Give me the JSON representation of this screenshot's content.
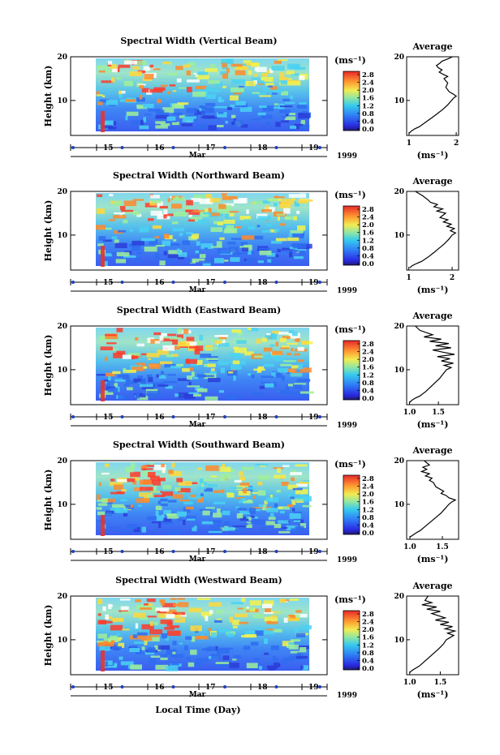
{
  "chart_data": [
    {
      "type": "heatmap",
      "title": "Spectral Width (Vertical Beam)",
      "ylabel": "Height (km)",
      "ylim": [
        2,
        20
      ],
      "yticks": [
        "20",
        "10"
      ],
      "xticks": [
        "15",
        "16",
        "17",
        "18",
        "19"
      ],
      "month_label": "Mar",
      "year_label": "1999",
      "colorbar": {
        "unit": "(ms⁻¹)",
        "ticks": [
          "2.8",
          "2.4",
          "2.0",
          "1.6",
          "1.2",
          "0.8",
          "0.4",
          "0.0"
        ]
      },
      "profile": {
        "title": "Average",
        "xticks": [
          "1",
          "2"
        ],
        "xlim": [
          0.95,
          2.05
        ],
        "xlabel": "(ms⁻¹)",
        "yticks": [
          "20",
          "10"
        ],
        "height_km": [
          2.5,
          3,
          3.5,
          4,
          5,
          6,
          7,
          8,
          9,
          10,
          10.5,
          11,
          11.5,
          12,
          13,
          14,
          15,
          15.5,
          16,
          16.5,
          17,
          17.5,
          18,
          18.5,
          19,
          19.5,
          20
        ],
        "width_ms": [
          1.0,
          1.05,
          1.12,
          1.22,
          1.35,
          1.48,
          1.6,
          1.72,
          1.82,
          1.9,
          1.94,
          2.0,
          1.93,
          1.85,
          1.78,
          1.82,
          1.74,
          1.82,
          1.72,
          1.64,
          1.7,
          1.62,
          1.58,
          1.65,
          1.7,
          1.82,
          1.92
        ]
      }
    },
    {
      "type": "heatmap",
      "title": "Spectral Width (Northward Beam)",
      "ylabel": "Height (km)",
      "ylim": [
        2,
        20
      ],
      "yticks": [
        "20",
        "10"
      ],
      "xticks": [
        "15",
        "16",
        "17",
        "18",
        "19"
      ],
      "month_label": "Mar",
      "year_label": "1999",
      "colorbar": {
        "unit": "(ms⁻¹)",
        "ticks": [
          "2.8",
          "2.4",
          "2.0",
          "1.6",
          "1.2",
          "0.8",
          "0.4",
          "0.0"
        ]
      },
      "profile": {
        "title": "Average",
        "xticks": [
          "1",
          "2"
        ],
        "xlim": [
          0.95,
          2.15
        ],
        "xlabel": "(ms⁻¹)",
        "yticks": [
          "20",
          "10"
        ],
        "height_km": [
          2.5,
          3,
          3.5,
          4,
          5,
          6,
          7,
          8,
          9,
          10,
          10.5,
          11,
          11.5,
          12,
          12.5,
          13,
          13.5,
          14,
          15,
          15.5,
          16,
          16.5,
          17,
          17.5,
          18,
          19,
          20
        ],
        "width_ms": [
          1.02,
          1.08,
          1.18,
          1.3,
          1.45,
          1.58,
          1.7,
          1.82,
          1.92,
          2.0,
          2.08,
          1.96,
          2.05,
          1.88,
          1.98,
          1.8,
          1.9,
          1.72,
          1.85,
          1.65,
          1.78,
          1.58,
          1.66,
          1.5,
          1.45,
          1.32,
          1.15
        ]
      }
    },
    {
      "type": "heatmap",
      "title": "Spectral Width (Eastward Beam)",
      "ylabel": "Height (km)",
      "ylim": [
        2,
        20
      ],
      "yticks": [
        "20",
        "10"
      ],
      "xticks": [
        "15",
        "16",
        "17",
        "18",
        "19"
      ],
      "month_label": "Mar",
      "year_label": "1999",
      "colorbar": {
        "unit": "(ms⁻¹)",
        "ticks": [
          "2.8",
          "2.4",
          "2.0",
          "1.6",
          "1.2",
          "0.8",
          "0.4",
          "0.0"
        ]
      },
      "profile": {
        "title": "Average",
        "xticks": [
          "1.0",
          "1.5"
        ],
        "xlim": [
          0.95,
          1.85
        ],
        "xlabel": "(ms⁻¹)",
        "yticks": [
          "20",
          "10"
        ],
        "height_km": [
          2.5,
          3,
          3.5,
          4,
          5,
          6,
          7,
          8,
          9,
          10,
          10.5,
          11,
          11.5,
          12,
          12.5,
          13,
          13.5,
          14,
          14.5,
          15,
          15.5,
          16,
          16.5,
          17,
          17.5,
          18,
          19,
          20
        ],
        "width_ms": [
          1.0,
          1.04,
          1.1,
          1.18,
          1.28,
          1.36,
          1.44,
          1.52,
          1.58,
          1.64,
          1.72,
          1.6,
          1.76,
          1.55,
          1.7,
          1.48,
          1.78,
          1.58,
          1.4,
          1.72,
          1.45,
          1.68,
          1.35,
          1.55,
          1.25,
          1.4,
          1.18,
          1.1
        ]
      }
    },
    {
      "type": "heatmap",
      "title": "Spectral Width (Southward Beam)",
      "ylabel": "Height (km)",
      "ylim": [
        2,
        20
      ],
      "yticks": [
        "20",
        "10"
      ],
      "xticks": [
        "15",
        "16",
        "17",
        "18",
        "19"
      ],
      "month_label": "Mar",
      "year_label": "1999",
      "colorbar": {
        "unit": "(ms⁻¹)",
        "ticks": [
          "2.8",
          "2.4",
          "2.0",
          "1.6",
          "1.2",
          "0.8",
          "0.4",
          "0.0"
        ]
      },
      "profile": {
        "title": "Average",
        "xticks": [
          "1.0",
          "1.5"
        ],
        "xlim": [
          0.95,
          1.75
        ],
        "xlabel": "(ms⁻¹)",
        "yticks": [
          "20",
          "10"
        ],
        "height_km": [
          2.5,
          3,
          3.5,
          4,
          5,
          6,
          7,
          8,
          9,
          10,
          10.5,
          11,
          11.5,
          12,
          12.5,
          13,
          14,
          15,
          15.5,
          16,
          16.5,
          17,
          17.5,
          18,
          18.5,
          19,
          20
        ],
        "width_ms": [
          1.0,
          1.05,
          1.1,
          1.16,
          1.24,
          1.32,
          1.4,
          1.48,
          1.54,
          1.6,
          1.64,
          1.7,
          1.6,
          1.56,
          1.48,
          1.52,
          1.4,
          1.36,
          1.3,
          1.34,
          1.24,
          1.3,
          1.18,
          1.26,
          1.2,
          1.3,
          1.22
        ]
      }
    },
    {
      "type": "heatmap",
      "title": "Spectral Width (Westward Beam)",
      "ylabel": "Height (km)",
      "xlabel": "Local Time (Day)",
      "ylim": [
        2,
        20
      ],
      "yticks": [
        "20",
        "10"
      ],
      "xticks": [
        "15",
        "16",
        "17",
        "18",
        "19"
      ],
      "month_label": "Mar",
      "year_label": "1999",
      "colorbar": {
        "unit": "(ms⁻¹)",
        "ticks": [
          "2.8",
          "2.4",
          "2.0",
          "1.6",
          "1.2",
          "0.8",
          "0.4",
          "0.0"
        ]
      },
      "profile": {
        "title": "Average",
        "xticks": [
          "1.0",
          "1.5"
        ],
        "xlim": [
          0.95,
          1.8
        ],
        "xlabel": "(ms⁻¹)",
        "yticks": [
          "20",
          "10"
        ],
        "height_km": [
          2.5,
          3,
          3.5,
          4,
          5,
          6,
          7,
          8,
          9,
          10,
          10.5,
          11,
          11.5,
          12,
          12.5,
          13,
          13.5,
          14,
          14.5,
          15,
          16,
          16.5,
          17,
          17.5,
          18,
          18.5,
          19,
          20
        ],
        "width_ms": [
          1.0,
          1.04,
          1.1,
          1.16,
          1.24,
          1.32,
          1.4,
          1.48,
          1.55,
          1.6,
          1.66,
          1.72,
          1.62,
          1.74,
          1.58,
          1.7,
          1.5,
          1.64,
          1.42,
          1.58,
          1.36,
          1.5,
          1.28,
          1.44,
          1.2,
          1.36,
          1.25,
          1.3
        ]
      }
    }
  ]
}
